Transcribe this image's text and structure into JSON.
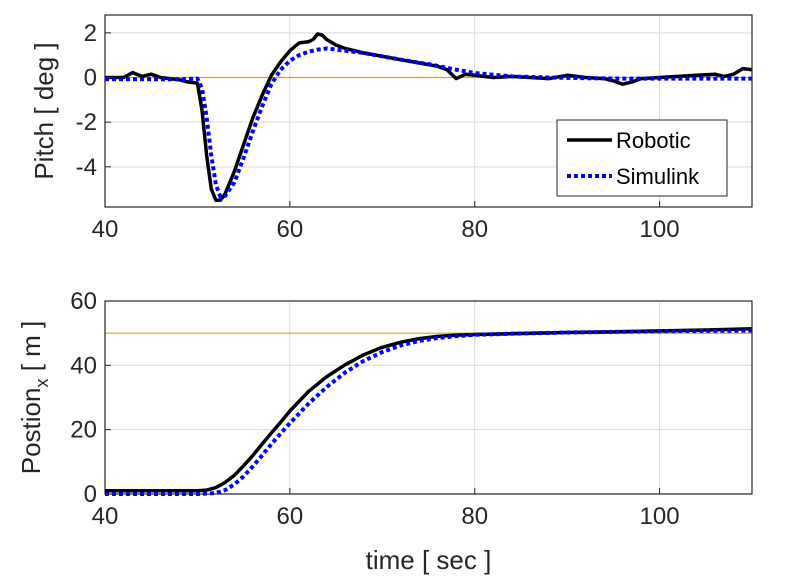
{
  "colors": {
    "robotic": "#000000",
    "simulink": "#0000ff",
    "reference": "#e5a000",
    "grid": "#d9d9d9",
    "axis": "#262626"
  },
  "chart_data": [
    {
      "type": "line",
      "xlabel": "",
      "ylabel": "Pitch [ deg ]",
      "xlim": [
        40,
        110
      ],
      "ylim": [
        -5.8,
        2.8
      ],
      "xticks": [
        40,
        60,
        80,
        100
      ],
      "yticks": [
        -4,
        -2,
        0,
        2
      ],
      "grid": true,
      "legend": {
        "position": "bottom-right",
        "entries": [
          "Robotic",
          "Simulink"
        ]
      },
      "series": [
        {
          "name": "Robotic",
          "style": "solid",
          "x": [
            40,
            42,
            43,
            44,
            45,
            46,
            47,
            48,
            49,
            50,
            50.5,
            51,
            51.5,
            52,
            52.5,
            53,
            54,
            55,
            56,
            57,
            58,
            59,
            60,
            61,
            62,
            62.5,
            63,
            63.5,
            64,
            65,
            66,
            67,
            68,
            70,
            72,
            74,
            76,
            77,
            78,
            79,
            80,
            82,
            84,
            86,
            88,
            90,
            92,
            94,
            95,
            96,
            97,
            98,
            100,
            102,
            104,
            106,
            107,
            108,
            109,
            110
          ],
          "y": [
            0.0,
            0.0,
            0.22,
            0.05,
            0.15,
            0.0,
            -0.05,
            -0.1,
            -0.2,
            -0.25,
            -1.5,
            -3.5,
            -5.0,
            -5.5,
            -5.5,
            -5.2,
            -4.2,
            -3.0,
            -1.8,
            -0.8,
            0.1,
            0.7,
            1.2,
            1.55,
            1.6,
            1.7,
            1.95,
            1.9,
            1.7,
            1.45,
            1.3,
            1.2,
            1.1,
            0.95,
            0.8,
            0.65,
            0.5,
            0.35,
            -0.05,
            0.15,
            0.1,
            0.0,
            0.05,
            0.0,
            -0.05,
            0.1,
            0.0,
            -0.05,
            -0.15,
            -0.3,
            -0.2,
            -0.05,
            0.0,
            0.05,
            0.1,
            0.15,
            0.05,
            0.15,
            0.4,
            0.35
          ]
        },
        {
          "name": "Simulink",
          "style": "dotted",
          "x": [
            40,
            44,
            48,
            50,
            50.5,
            51,
            51.5,
            52,
            52.5,
            53,
            54,
            55,
            56,
            57,
            58,
            59,
            60,
            61,
            62,
            63,
            64,
            66,
            68,
            70,
            72,
            75,
            78,
            80,
            84,
            88,
            92,
            96,
            100,
            104,
            108,
            110
          ],
          "y": [
            -0.08,
            -0.08,
            -0.08,
            -0.05,
            -0.5,
            -1.8,
            -3.5,
            -4.8,
            -5.35,
            -5.3,
            -4.7,
            -3.6,
            -2.4,
            -1.3,
            -0.3,
            0.35,
            0.75,
            1.0,
            1.15,
            1.25,
            1.3,
            1.2,
            1.1,
            0.95,
            0.8,
            0.6,
            0.35,
            0.2,
            0.05,
            0.0,
            -0.03,
            -0.05,
            -0.05,
            -0.05,
            -0.05,
            -0.05
          ]
        },
        {
          "name": "",
          "style": "reference",
          "x": [
            40,
            110
          ],
          "y": [
            0,
            0
          ]
        }
      ]
    },
    {
      "type": "line",
      "xlabel": "time [ sec ]",
      "ylabel": "Postion",
      "ylabel_sub": "x",
      "ylabel_unit": " [ m ]",
      "xlim": [
        40,
        110
      ],
      "ylim": [
        0,
        60
      ],
      "xticks": [
        40,
        60,
        80,
        100
      ],
      "yticks": [
        0,
        20,
        40,
        60
      ],
      "grid": true,
      "series": [
        {
          "name": "Robotic",
          "style": "solid",
          "x": [
            40,
            45,
            50,
            51,
            52,
            53,
            54,
            55,
            56,
            57,
            58,
            59,
            60,
            62,
            64,
            66,
            68,
            70,
            72,
            74,
            76,
            78,
            80,
            85,
            90,
            95,
            100,
            105,
            110
          ],
          "y": [
            1.0,
            1.0,
            1.0,
            1.2,
            2.0,
            3.6,
            5.8,
            8.8,
            12.0,
            15.5,
            19.0,
            22.3,
            25.8,
            31.8,
            36.5,
            40.2,
            43.3,
            45.6,
            47.2,
            48.3,
            49.0,
            49.4,
            49.6,
            49.9,
            50.2,
            50.4,
            50.7,
            51.0,
            51.4
          ]
        },
        {
          "name": "Simulink",
          "style": "dotted",
          "x": [
            40,
            45,
            50,
            52,
            53,
            54,
            55,
            56,
            57,
            58,
            59,
            60,
            62,
            64,
            66,
            68,
            70,
            72,
            74,
            76,
            78,
            80,
            85,
            90,
            95,
            100,
            105,
            110
          ],
          "y": [
            0.0,
            0.0,
            0.0,
            0.3,
            1.2,
            3.0,
            5.5,
            8.6,
            12.0,
            15.5,
            18.8,
            22.0,
            28.0,
            33.3,
            37.8,
            41.4,
            44.1,
            46.2,
            47.6,
            48.5,
            49.1,
            49.5,
            49.9,
            50.2,
            50.4,
            50.6,
            50.7,
            50.8
          ]
        },
        {
          "name": "",
          "style": "reference",
          "x": [
            40,
            110
          ],
          "y": [
            50,
            50
          ]
        }
      ]
    }
  ]
}
